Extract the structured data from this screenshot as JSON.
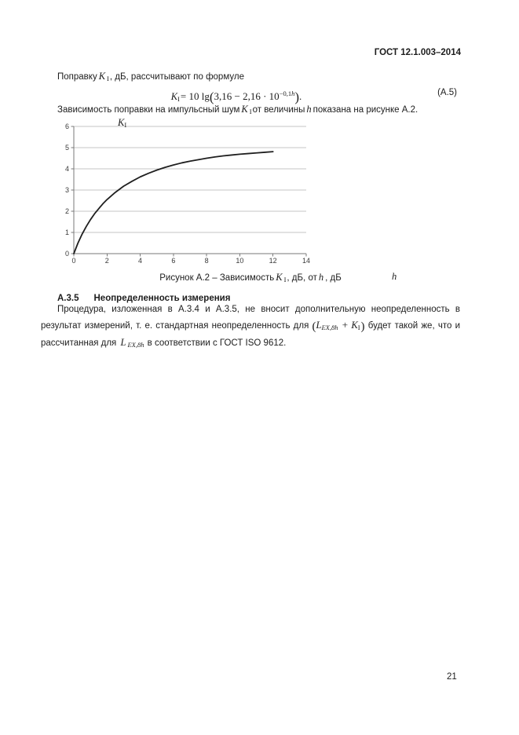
{
  "header": {
    "title": "ГОСТ 12.1.003–2014"
  },
  "intro": {
    "before": "Поправку",
    "var_base": "K",
    "var_sub": "I",
    "after": ", дБ, рассчитывают по формуле"
  },
  "formula": {
    "var_base": "K",
    "var_sub": "I",
    "rhs_prefix": "= 10 lg",
    "paren_open": "(",
    "inner": "3,16 − 2,16 · 10",
    "exp_num": "−0,1",
    "exp_var": "h",
    "paren_close": ")",
    "period": ".",
    "label": "(А.5)"
  },
  "dependence": {
    "before": "Зависимость поправки на импульсный шум",
    "var1_base": "K",
    "var1_sub": "I",
    "mid": "от величины",
    "var2": "h",
    "after": "показана на рисунке А.2."
  },
  "chart": {
    "y_label_base": "K",
    "y_label_sub": "I",
    "x_var": "h"
  },
  "chart_data": {
    "type": "line",
    "title": "Рисунок А.2 – Зависимость KI, дБ, от h, дБ",
    "xlabel": "h, дБ",
    "ylabel": "KI, дБ",
    "xlim": [
      0,
      14
    ],
    "ylim": [
      0,
      6
    ],
    "x_ticks": [
      0,
      2,
      4,
      6,
      8,
      10,
      12,
      14
    ],
    "y_ticks": [
      0,
      1,
      2,
      3,
      4,
      5,
      6
    ],
    "grid": "horizontal",
    "legend": "none",
    "points": [
      [
        0,
        0
      ],
      [
        0.25,
        0.5
      ],
      [
        0.5,
        0.92
      ],
      [
        0.75,
        1.28
      ],
      [
        1,
        1.6
      ],
      [
        1.25,
        1.88
      ],
      [
        1.5,
        2.12
      ],
      [
        1.75,
        2.35
      ],
      [
        2,
        2.55
      ],
      [
        2.5,
        2.89
      ],
      [
        3,
        3.18
      ],
      [
        3.5,
        3.41
      ],
      [
        4,
        3.62
      ],
      [
        4.5,
        3.79
      ],
      [
        5,
        3.94
      ],
      [
        5.5,
        4.07
      ],
      [
        6,
        4.18
      ],
      [
        6.5,
        4.28
      ],
      [
        7,
        4.36
      ],
      [
        7.5,
        4.43
      ],
      [
        8,
        4.5
      ],
      [
        8.5,
        4.56
      ],
      [
        9,
        4.61
      ],
      [
        9.5,
        4.65
      ],
      [
        10,
        4.69
      ],
      [
        10.5,
        4.72
      ],
      [
        11,
        4.75
      ],
      [
        11.5,
        4.78
      ],
      [
        12,
        4.81
      ]
    ]
  },
  "caption": {
    "prefix": "Рисунок А.2 – Зависимость",
    "var1_base": "K",
    "var1_sub": "I",
    "mid": ", дБ, от",
    "var2": "h",
    "suffix": ", дБ"
  },
  "section": {
    "number": "А.3.5",
    "title": "Неопределенность измерения"
  },
  "body": {
    "line1": "Процедура, изложенная в А.3.4 и А.3.5, не вносит дополнительную неопределенность в",
    "line2_pre": "результат измерений, т. е. стандартная неопределенность для ",
    "math1_open": "(",
    "math1_L": "L",
    "math1_L_sub": "EX,8h",
    "math1_plus": " + ",
    "math1_K": "K",
    "math1_K_sub": "I",
    "math1_close": ")",
    "line2_post": " будет такой же, что и",
    "line3_pre": "рассчитанная для ",
    "math2_base": "L",
    "math2_sub": "EX,8h",
    "line3_post": " в соответствии с ГОСТ ISO 9612."
  },
  "page": {
    "number": "21"
  },
  "colors": {
    "text": "#1c1c1c",
    "grid": "#c6c6c6",
    "axis": "#7a7a7a",
    "curve": "#1f1f1f",
    "tick_text": "#3a3a3a"
  }
}
